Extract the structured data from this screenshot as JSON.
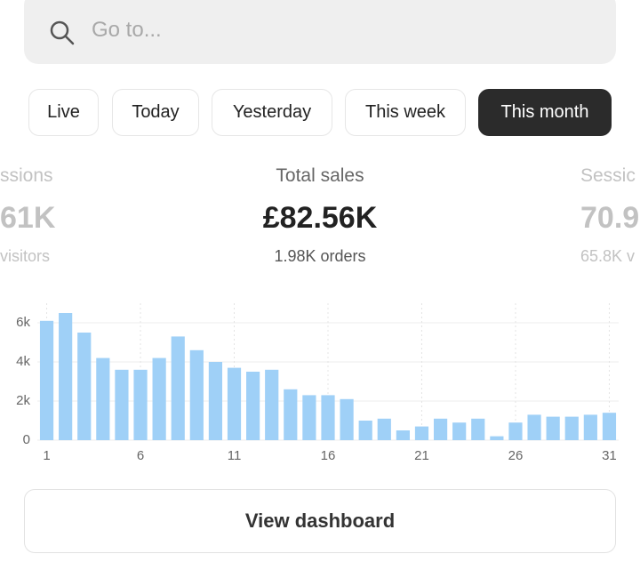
{
  "search": {
    "placeholder": "Go to..."
  },
  "tabs": [
    "Live",
    "Today",
    "Yesterday",
    "This week",
    "This month"
  ],
  "active_tab": 4,
  "metrics": [
    {
      "label": "ssions",
      "value": "61K",
      "sub": "visitors"
    },
    {
      "label": "Total sales",
      "value": "£82.56K",
      "sub": "1.98K orders"
    },
    {
      "label": "Sessic",
      "value": "70.9",
      "sub": "65.8K v"
    }
  ],
  "chart_data": {
    "type": "bar",
    "categories": [
      "1",
      null,
      null,
      null,
      null,
      "6",
      null,
      null,
      null,
      null,
      "11",
      null,
      null,
      null,
      null,
      "16",
      null,
      null,
      null,
      null,
      "21",
      null,
      null,
      null,
      null,
      "26",
      null,
      null,
      null,
      null,
      "31"
    ],
    "values": [
      6100,
      6500,
      5500,
      4200,
      3600,
      3600,
      4200,
      5300,
      4600,
      4000,
      3700,
      3500,
      3600,
      2600,
      2300,
      2300,
      2100,
      1000,
      1100,
      500,
      700,
      1100,
      900,
      1100,
      200,
      900,
      1300,
      1200,
      1200,
      1300,
      1400
    ],
    "color": "#9fd0f7",
    "ylim": [
      0,
      7000
    ],
    "yticks": [
      0,
      {
        "value": 2000,
        "label": "2k"
      },
      {
        "value": 4000,
        "label": "4k"
      },
      {
        "value": 6000,
        "label": "6k"
      }
    ],
    "grid": true
  },
  "button": "View dashboard"
}
